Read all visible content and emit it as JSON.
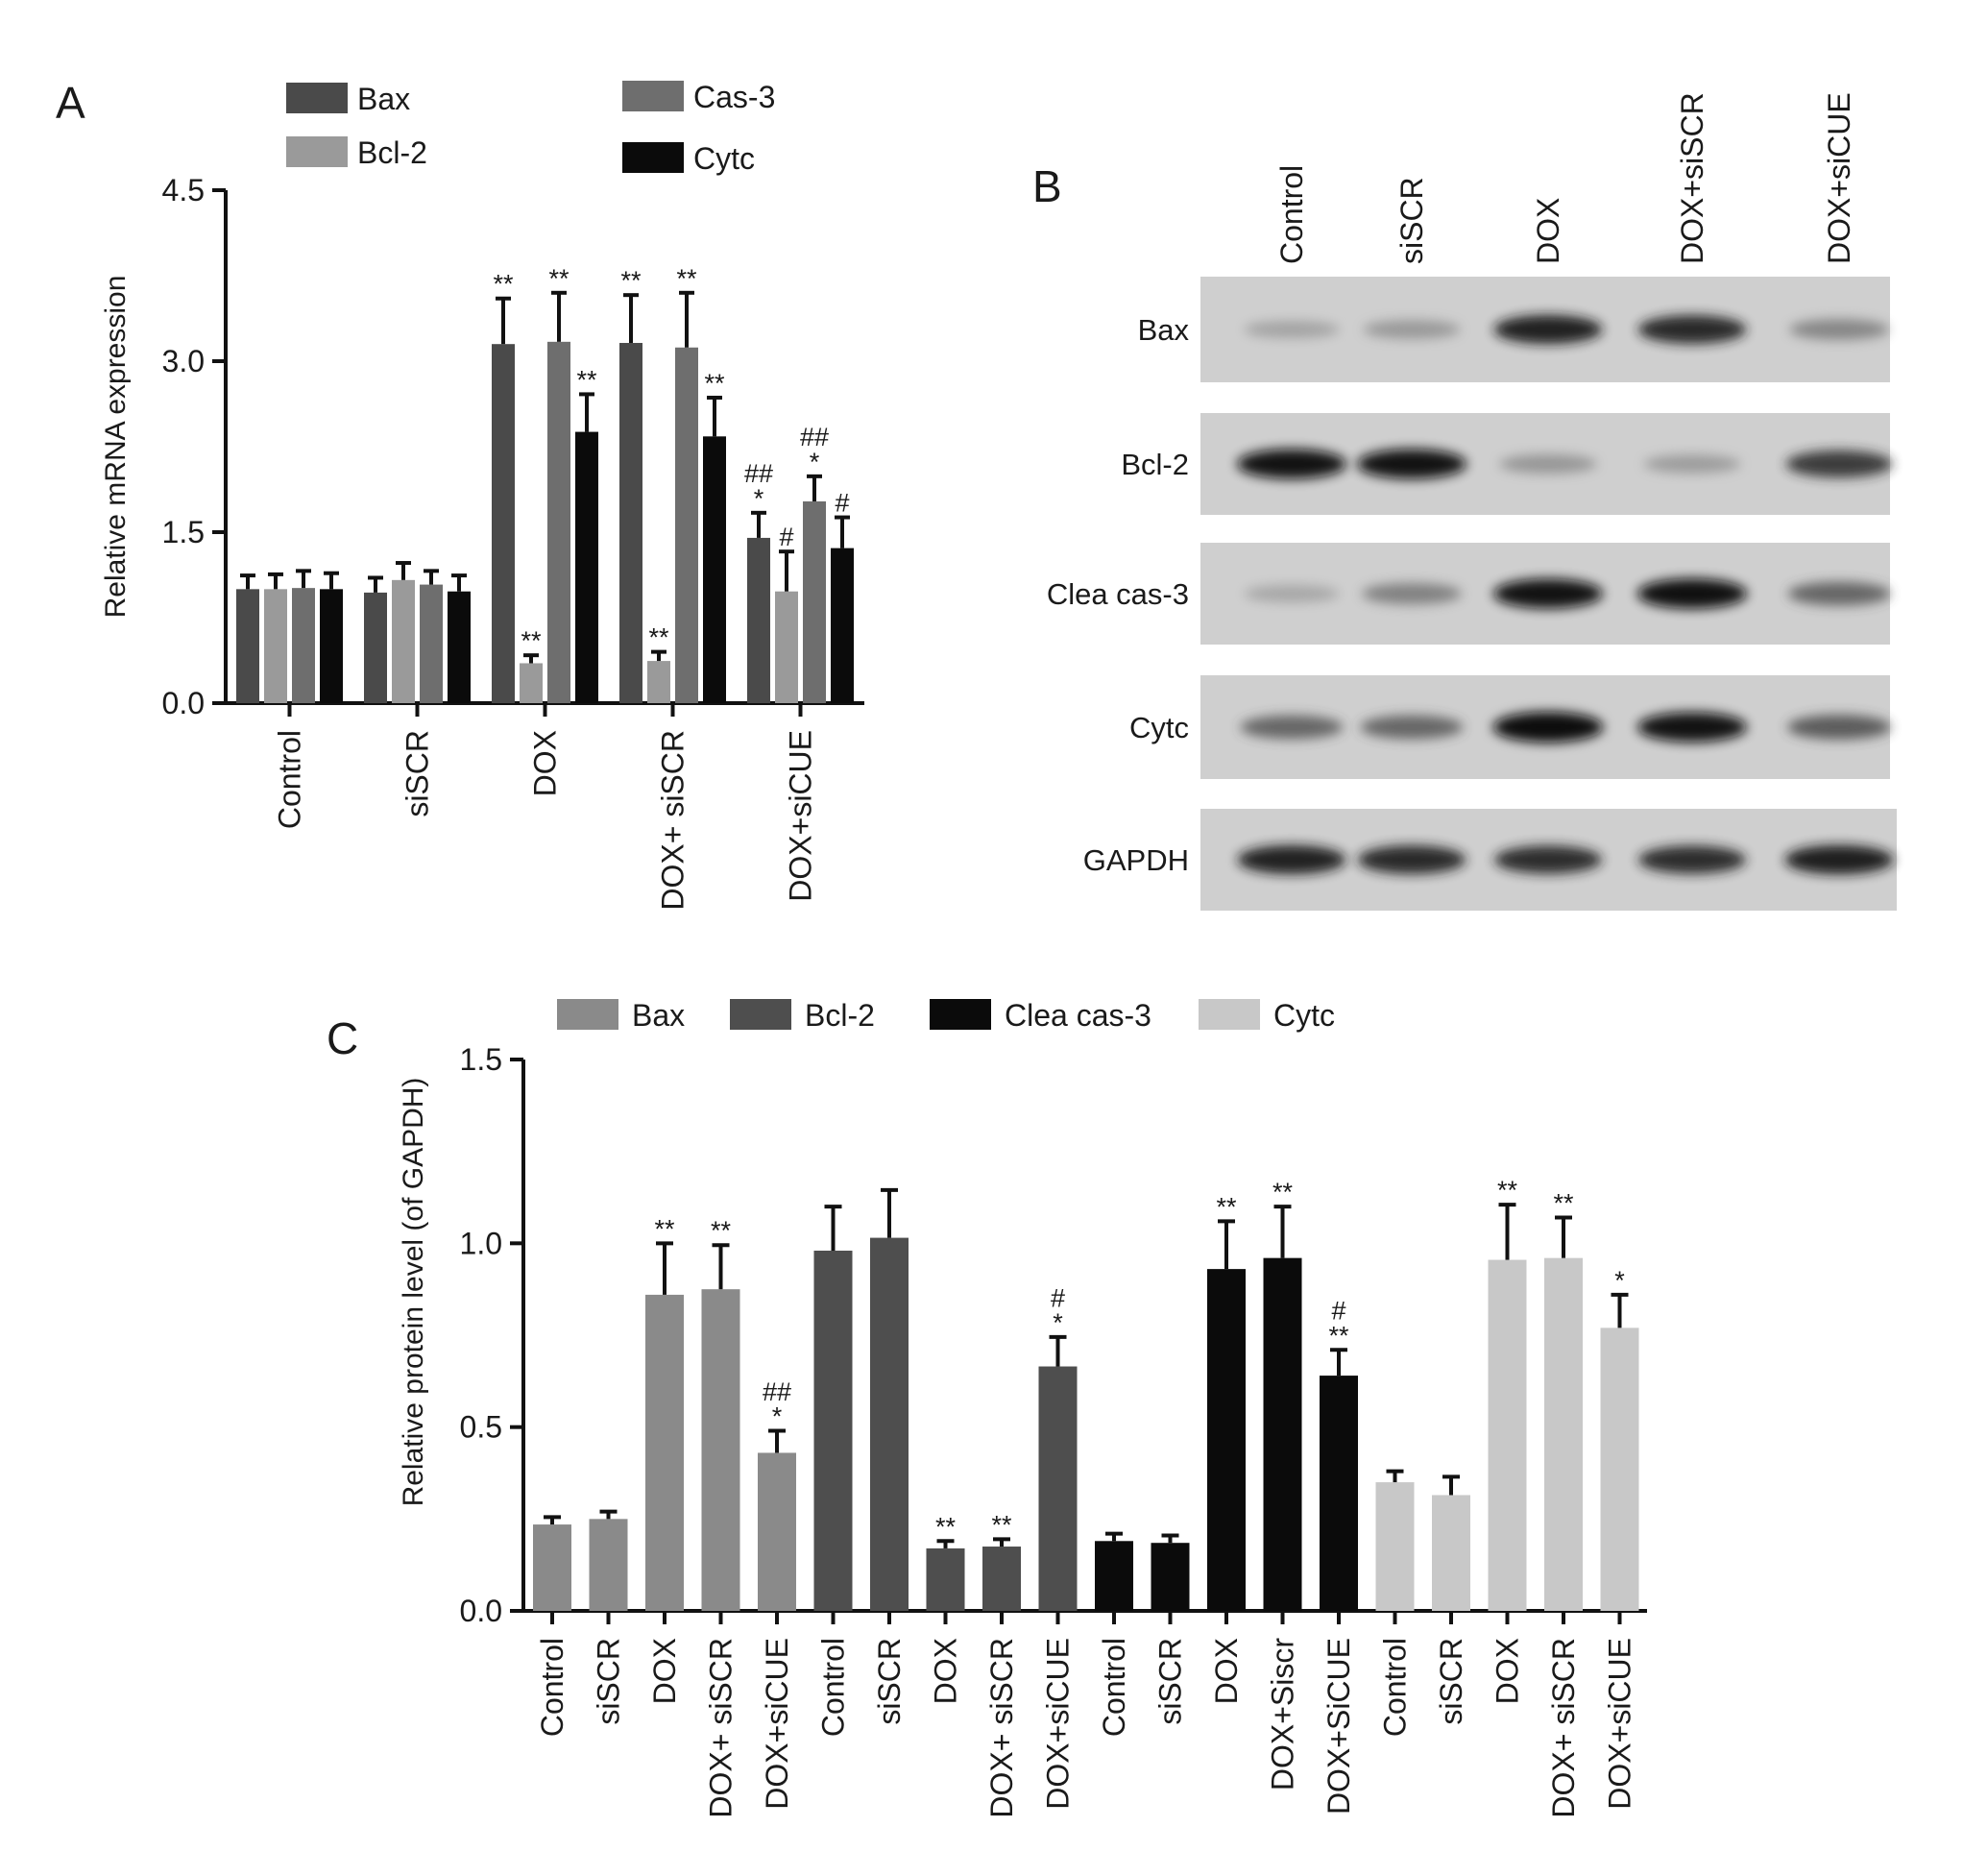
{
  "panel_labels": {
    "a": "A",
    "b": "B",
    "c": "C"
  },
  "colors": {
    "a_bax": "#4a4a4a",
    "a_bcl2": "#9a9a9a",
    "a_cas3": "#6e6e6e",
    "a_cytc": "#0b0b0b",
    "c_bax": "#8a8a8a",
    "c_bcl2": "#4e4e4e",
    "c_cleacas3": "#0b0b0b",
    "c_cytc": "#c8c8c8"
  },
  "chart_data": [
    {
      "panel": "A",
      "type": "bar",
      "ylabel": "Relative mRNA expression",
      "ylim": [
        0,
        4.5
      ],
      "yticks": [
        "0.0",
        "1.5",
        "3.0",
        "4.5"
      ],
      "categories": [
        "Control",
        "siSCR",
        "DOX",
        "DOX+ siSCR",
        "DOX+siCUE"
      ],
      "legend": [
        "Bax",
        "Bcl-2",
        "Cas-3",
        "Cytc"
      ],
      "series": [
        {
          "name": "Bax",
          "values": [
            1.0,
            0.97,
            3.15,
            3.16,
            1.45
          ],
          "errors": [
            0.12,
            0.13,
            0.4,
            0.42,
            0.22
          ],
          "annotations": [
            "",
            "",
            "**",
            "**",
            "##\n*"
          ]
        },
        {
          "name": "Bcl-2",
          "values": [
            1.0,
            1.08,
            0.35,
            0.37,
            0.98
          ],
          "errors": [
            0.13,
            0.15,
            0.07,
            0.08,
            0.35
          ],
          "annotations": [
            "",
            "",
            "**",
            "**",
            "#"
          ]
        },
        {
          "name": "Cas-3",
          "values": [
            1.01,
            1.04,
            3.17,
            3.12,
            1.77
          ],
          "errors": [
            0.15,
            0.12,
            0.43,
            0.48,
            0.22
          ],
          "annotations": [
            "",
            "",
            "**",
            "**",
            "##\n*"
          ]
        },
        {
          "name": "Cytc",
          "values": [
            1.0,
            0.98,
            2.38,
            2.34,
            1.36
          ],
          "errors": [
            0.14,
            0.14,
            0.33,
            0.34,
            0.27
          ],
          "annotations": [
            "",
            "",
            "**",
            "**",
            "#"
          ]
        }
      ]
    },
    {
      "panel": "C",
      "type": "bar",
      "ylabel": "Relative protein level (of GAPDH)",
      "ylim": [
        0,
        1.5
      ],
      "yticks": [
        "0.0",
        "0.5",
        "1.0",
        "1.5"
      ],
      "legend": [
        "Bax",
        "Bcl-2",
        "Clea cas-3",
        "Cytc"
      ],
      "groups": [
        {
          "name": "Bax",
          "categories": [
            "Control",
            "siSCR",
            "DOX",
            "DOX+ siSCR",
            "DOX+siCUE"
          ],
          "values": [
            0.235,
            0.25,
            0.86,
            0.875,
            0.43
          ],
          "errors": [
            0.02,
            0.02,
            0.14,
            0.12,
            0.06
          ],
          "annotations": [
            "",
            "",
            "**",
            "**",
            "##\n*"
          ]
        },
        {
          "name": "Bcl-2",
          "categories": [
            "Control",
            "siSCR",
            "DOX",
            "DOX+ siSCR",
            "DOX+siCUE"
          ],
          "values": [
            0.98,
            1.015,
            0.17,
            0.175,
            0.665
          ],
          "errors": [
            0.12,
            0.13,
            0.02,
            0.02,
            0.08
          ],
          "annotations": [
            "",
            "",
            "**",
            "**",
            "#\n*"
          ]
        },
        {
          "name": "Clea cas-3",
          "categories": [
            "Control",
            "siSCR",
            "DOX",
            "DOX+Siscr",
            "DOX+SiCUE"
          ],
          "values": [
            0.19,
            0.185,
            0.93,
            0.96,
            0.64
          ],
          "errors": [
            0.02,
            0.02,
            0.13,
            0.14,
            0.07
          ],
          "annotations": [
            "",
            "",
            "**",
            "**",
            "#\n**"
          ]
        },
        {
          "name": "Cytc",
          "categories": [
            "Control",
            "siSCR",
            "DOX",
            "DOX+ siSCR",
            "DOX+siCUE"
          ],
          "values": [
            0.35,
            0.315,
            0.955,
            0.96,
            0.77
          ],
          "errors": [
            0.03,
            0.05,
            0.15,
            0.11,
            0.09
          ],
          "annotations": [
            "",
            "",
            "**",
            "**",
            "*"
          ]
        }
      ]
    }
  ],
  "blot": {
    "lanes": [
      "Control",
      "siSCR",
      "DOX",
      "DOX+siSCR",
      "DOX+siCUE"
    ],
    "rows": [
      {
        "label": "Bax",
        "intensity": [
          0.22,
          0.3,
          0.9,
          0.88,
          0.42
        ]
      },
      {
        "label": "Bcl-2",
        "intensity": [
          0.95,
          0.95,
          0.32,
          0.28,
          0.8
        ]
      },
      {
        "label": "Clea cas-3",
        "intensity": [
          0.2,
          0.45,
          0.95,
          0.97,
          0.6
        ]
      },
      {
        "label": "Cytc",
        "intensity": [
          0.6,
          0.6,
          1.0,
          0.95,
          0.65
        ]
      },
      {
        "label": "GAPDH",
        "intensity": [
          0.9,
          0.88,
          0.85,
          0.85,
          0.92
        ]
      }
    ]
  }
}
